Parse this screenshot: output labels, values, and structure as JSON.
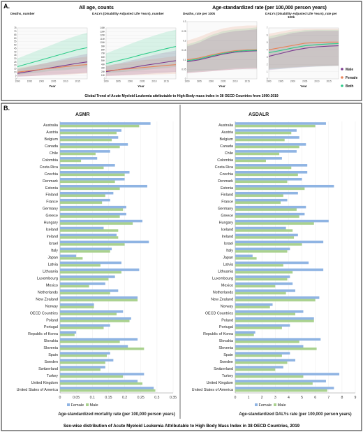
{
  "panelA": {
    "label": "A.",
    "group1_title": "All age, counts",
    "group2_title": "Age-standardized rate (per 100,000 person years)",
    "caption": "Global Trend of Acute Myeloid Leukemia attributable to High-Body mass index in 38 OECD Countries from 1990-2019",
    "legend": [
      {
        "name": "Male",
        "color": "#7b3a8f"
      },
      {
        "name": "Female",
        "color": "#e8845a"
      },
      {
        "name": "Both",
        "color": "#2ecc8a"
      }
    ]
  },
  "panelB": {
    "label": "B.",
    "caption": "Sex-wise distribution of Acute Myeloid Leukemia Attributable to High Body Mass Index in 38 OECD Countries, 2019",
    "female_color": "#8fb4e3",
    "male_color": "#a9d18e"
  },
  "chart_data": [
    {
      "type": "line",
      "title": "Deaths, number",
      "xlabel": "Year",
      "x": [
        1990,
        1995,
        2000,
        2005,
        2010,
        2015,
        2019
      ],
      "xticks": [
        "1990",
        "1995",
        "2000",
        "2005",
        "2010",
        "2015"
      ],
      "ylim": [
        0,
        75
      ],
      "yticks": [
        "0",
        "5",
        "10",
        "15",
        "20",
        "25",
        "30",
        "35",
        "40",
        "45",
        "50",
        "55",
        "60",
        "65",
        "70",
        "75"
      ],
      "series": [
        {
          "name": "Male",
          "values": [
            8,
            11,
            14,
            17,
            20,
            23,
            25
          ],
          "lower": [
            3,
            4,
            5,
            6,
            7,
            8,
            9
          ],
          "upper": [
            14,
            18,
            22,
            26,
            30,
            34,
            37
          ]
        },
        {
          "name": "Female",
          "values": [
            10,
            12,
            14,
            16,
            18,
            20,
            21
          ],
          "lower": [
            4,
            4,
            5,
            6,
            6,
            7,
            8
          ],
          "upper": [
            16,
            19,
            22,
            25,
            28,
            31,
            33
          ]
        },
        {
          "name": "Both",
          "values": [
            18,
            23,
            28,
            33,
            38,
            43,
            46
          ],
          "lower": [
            6,
            8,
            10,
            12,
            13,
            15,
            17
          ],
          "upper": [
            30,
            37,
            44,
            51,
            58,
            64,
            68
          ]
        }
      ]
    },
    {
      "type": "line",
      "title": "DALYs (Disability-Adjusted Life Years), number",
      "xlabel": "Year",
      "x": [
        1990,
        1995,
        2000,
        2005,
        2010,
        2015,
        2019
      ],
      "xticks": [
        "1990",
        "1995",
        "2000",
        "2005",
        "2010",
        "2015"
      ],
      "ylim": [
        0,
        140000
      ],
      "yticks": [
        "0",
        "10K",
        "20K",
        "30K",
        "40K",
        "50K",
        "60K",
        "70K",
        "80K",
        "90K",
        "100K",
        "110K",
        "120K",
        "130K",
        "140K"
      ],
      "series": [
        {
          "name": "Male",
          "values": [
            20000,
            25000,
            30000,
            36000,
            41000,
            46000,
            50000
          ],
          "lower": [
            8000,
            9000,
            11000,
            13000,
            15000,
            17000,
            19000
          ],
          "upper": [
            35000,
            42000,
            50000,
            58000,
            66000,
            73000,
            78000
          ]
        },
        {
          "name": "Female",
          "values": [
            22000,
            25000,
            28000,
            31000,
            34000,
            37000,
            39000
          ],
          "lower": [
            8000,
            9000,
            10000,
            11000,
            12000,
            13000,
            14000
          ],
          "upper": [
            36000,
            41000,
            46000,
            51000,
            55000,
            59000,
            62000
          ]
        },
        {
          "name": "Both",
          "values": [
            42000,
            50000,
            58000,
            67000,
            75000,
            83000,
            89000
          ],
          "lower": [
            16000,
            18000,
            21000,
            24000,
            27000,
            30000,
            33000
          ],
          "upper": [
            70000,
            83000,
            96000,
            108000,
            119000,
            129000,
            135000
          ]
        }
      ]
    },
    {
      "type": "line",
      "title": "Deaths, rate per 100k",
      "xlabel": "Year",
      "x": [
        1990,
        1995,
        2000,
        2005,
        2010,
        2015,
        2019
      ],
      "xticks": [
        "1990",
        "1995",
        "2000",
        "2005",
        "2010",
        "2015"
      ],
      "ylim": [
        0,
        0.3
      ],
      "yticks": [
        "0",
        "0.05",
        "0.1",
        "0.15",
        "0.2",
        "0.25",
        "0.3"
      ],
      "series": [
        {
          "name": "Male",
          "values": [
            0.09,
            0.1,
            0.115,
            0.13,
            0.14,
            0.145,
            0.147
          ],
          "lower": [
            0.03,
            0.035,
            0.04,
            0.045,
            0.05,
            0.052,
            0.053
          ],
          "upper": [
            0.17,
            0.19,
            0.22,
            0.24,
            0.25,
            0.255,
            0.26
          ]
        },
        {
          "name": "Female",
          "values": [
            0.1,
            0.11,
            0.125,
            0.138,
            0.148,
            0.152,
            0.153
          ],
          "lower": [
            0.03,
            0.035,
            0.04,
            0.045,
            0.05,
            0.052,
            0.053
          ],
          "upper": [
            0.2,
            0.22,
            0.245,
            0.265,
            0.275,
            0.28,
            0.28
          ]
        },
        {
          "name": "Both",
          "values": [
            0.095,
            0.105,
            0.12,
            0.134,
            0.144,
            0.149,
            0.15
          ],
          "lower": [
            0.035,
            0.04,
            0.045,
            0.05,
            0.055,
            0.057,
            0.058
          ],
          "upper": [
            0.18,
            0.2,
            0.23,
            0.25,
            0.26,
            0.265,
            0.27
          ]
        }
      ]
    },
    {
      "type": "line",
      "title": "DALYs (Disability-Adjusted Life Years), rate per 100k",
      "xlabel": "Year",
      "x": [
        1990,
        1995,
        2000,
        2005,
        2010,
        2015,
        2019
      ],
      "xticks": [
        "1990",
        "1995",
        "2000",
        "2005",
        "2010",
        "2015"
      ],
      "ylim": [
        0,
        7
      ],
      "yticks": [
        "0",
        "1",
        "2",
        "3",
        "4",
        "5",
        "6",
        "7"
      ],
      "series": [
        {
          "name": "Male",
          "values": [
            3.1,
            3.5,
            3.9,
            4.2,
            4.4,
            4.5,
            4.55
          ],
          "lower": [
            1.2,
            1.35,
            1.5,
            1.6,
            1.7,
            1.75,
            1.8
          ],
          "upper": [
            5.5,
            5.9,
            6.3,
            6.5,
            6.6,
            6.6,
            6.6
          ]
        },
        {
          "name": "Female",
          "values": [
            4.0,
            4.3,
            4.6,
            4.9,
            5.0,
            5.05,
            5.05
          ],
          "lower": [
            1.4,
            1.5,
            1.6,
            1.7,
            1.75,
            1.8,
            1.8
          ],
          "upper": [
            6.2,
            6.5,
            6.8,
            6.9,
            6.9,
            6.9,
            6.9
          ]
        },
        {
          "name": "Both",
          "values": [
            3.6,
            3.9,
            4.25,
            4.55,
            4.7,
            4.8,
            4.85
          ],
          "lower": [
            1.3,
            1.4,
            1.55,
            1.65,
            1.7,
            1.75,
            1.8
          ],
          "upper": [
            5.8,
            6.2,
            6.5,
            6.7,
            6.75,
            6.75,
            6.75
          ]
        }
      ]
    },
    {
      "type": "bar",
      "orientation": "horizontal",
      "title": "ASMR",
      "xlabel": "Age-standardized mortality rate (per 100,000 person years)",
      "xlim": [
        0,
        0.35
      ],
      "xticks": [
        "0",
        "0.05",
        "0.1",
        "0.15",
        "0.2",
        "0.25",
        "0.3",
        "0.35"
      ],
      "categories": [
        "Australia",
        "Austria",
        "Belgium",
        "Canada",
        "Chile",
        "Colombia",
        "Costa Rica",
        "Czechia",
        "Denmark",
        "Estonia",
        "Finland",
        "France",
        "Germany",
        "Greece",
        "Hungary",
        "Iceland",
        "Ireland",
        "Israel",
        "Italy",
        "Japan",
        "Latvia",
        "Lithuania",
        "Luxembourg",
        "Mexico",
        "Netherlands",
        "New Zealand",
        "Norway",
        "OECD Countries",
        "Poland",
        "Portugal",
        "Republic of Korea",
        "Slovakia",
        "Slovenia",
        "Spain",
        "Sweden",
        "Switzerland",
        "Turkey",
        "United Kingdom",
        "United States of America"
      ],
      "series": [
        {
          "name": "Female",
          "values": [
            0.28,
            0.19,
            0.18,
            0.21,
            0.155,
            0.115,
            0.17,
            0.215,
            0.2,
            0.27,
            0.165,
            0.155,
            0.205,
            0.205,
            0.255,
            0.135,
            0.175,
            0.275,
            0.16,
            0.05,
            0.19,
            0.245,
            0.17,
            0.14,
            0.18,
            0.24,
            0.105,
            0.195,
            0.22,
            0.155,
            0.05,
            0.24,
            0.21,
            0.155,
            0.165,
            0.14,
            0.26,
            0.24,
            0.29
          ]
        },
        {
          "name": "Male",
          "values": [
            0.245,
            0.175,
            0.16,
            0.185,
            0.11,
            0.065,
            0.135,
            0.2,
            0.17,
            0.185,
            0.14,
            0.13,
            0.195,
            0.185,
            0.225,
            0.18,
            0.18,
            0.2,
            0.155,
            0.07,
            0.125,
            0.19,
            0.15,
            0.09,
            0.155,
            0.24,
            0.105,
            0.175,
            0.215,
            0.135,
            0.045,
            0.185,
            0.26,
            0.145,
            0.14,
            0.125,
            0.195,
            0.255,
            0.295
          ]
        }
      ]
    },
    {
      "type": "bar",
      "orientation": "horizontal",
      "title": "ASDALR",
      "xlabel": "Age-standardized DALYs rate (per 100,000 person years)",
      "xlim": [
        0,
        9
      ],
      "xticks": [
        "0",
        "1",
        "2",
        "3",
        "4",
        "5",
        "6",
        "7",
        "8",
        "9"
      ],
      "categories": [
        "Australia",
        "Austria",
        "Belgium",
        "Canada",
        "Chile",
        "Colombia",
        "Costa Rica",
        "Czechia",
        "Denmark",
        "Estonia",
        "Finland",
        "France",
        "Germany",
        "Greece",
        "Hungary",
        "Iceland",
        "Ireland",
        "Israel",
        "Italy",
        "Japan",
        "Latvia",
        "Lithuania",
        "Luxembourg",
        "Mexico",
        "Netherlands",
        "New Zealand",
        "Norway",
        "OECD Countries",
        "Poland",
        "Portugal",
        "Republic of Korea",
        "Slovakia",
        "Slovenia",
        "Spain",
        "Sweden",
        "Switzerland",
        "Turkey",
        "United Kingdom",
        "United States of America"
      ],
      "series": [
        {
          "name": "Female",
          "values": [
            6.8,
            4.6,
            4.8,
            5.3,
            4.6,
            3.5,
            5.4,
            5.4,
            5.0,
            7.4,
            4.7,
            3.9,
            5.3,
            5.2,
            7.0,
            3.8,
            4.7,
            6.6,
            4.1,
            1.3,
            5.5,
            6.6,
            4.1,
            4.3,
            4.5,
            6.3,
            2.8,
            5.1,
            5.9,
            4.1,
            1.5,
            6.4,
            5.1,
            4.1,
            4.5,
            3.6,
            7.8,
            6.8,
            7.4
          ]
        },
        {
          "name": "Male",
          "values": [
            6.0,
            4.2,
            3.7,
            4.8,
            3.3,
            2.3,
            4.2,
            4.7,
            3.9,
            5.2,
            3.6,
            3.4,
            4.6,
            4.8,
            5.9,
            4.3,
            4.4,
            5.0,
            3.9,
            1.6,
            3.6,
            4.3,
            3.9,
            3.0,
            3.8,
            6.0,
            2.6,
            4.5,
            5.9,
            3.5,
            1.4,
            4.8,
            6.1,
            3.5,
            3.9,
            3.0,
            5.1,
            5.8,
            6.9
          ]
        }
      ]
    }
  ]
}
